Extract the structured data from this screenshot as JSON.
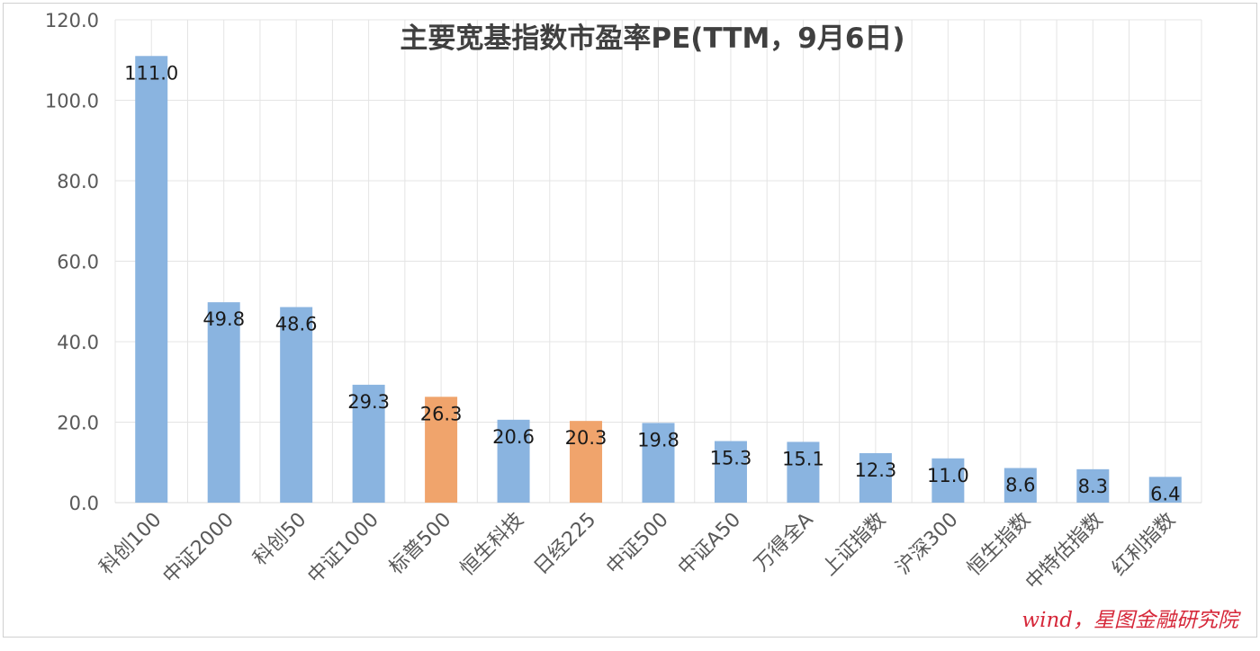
{
  "chart_data": {
    "type": "bar",
    "title": "主要宽基指数市盈率PE(TTM，9月6日)",
    "categories": [
      "科创100",
      "中证2000",
      "科创50",
      "中证1000",
      "标普500",
      "恒生科技",
      "日经225",
      "中证500",
      "中证A50",
      "万得全A",
      "上证指数",
      "沪深300",
      "恒生指数",
      "中特估指数",
      "红利指数"
    ],
    "values": [
      111.0,
      49.8,
      48.6,
      29.3,
      26.3,
      20.6,
      20.3,
      19.8,
      15.3,
      15.1,
      12.3,
      11.0,
      8.6,
      8.3,
      6.4
    ],
    "data_labels": [
      "111.0",
      "49.8",
      "48.6",
      "29.3",
      "26.3",
      "20.6",
      "20.3",
      "19.8",
      "15.3",
      "15.1",
      "12.3",
      "11.0",
      "8.6",
      "8.3",
      "6.4"
    ],
    "bar_colors": [
      "#8ab4e0",
      "#8ab4e0",
      "#8ab4e0",
      "#8ab4e0",
      "#f0a46c",
      "#8ab4e0",
      "#f0a46c",
      "#8ab4e0",
      "#8ab4e0",
      "#8ab4e0",
      "#8ab4e0",
      "#8ab4e0",
      "#8ab4e0",
      "#8ab4e0",
      "#8ab4e0"
    ],
    "ylim": [
      0,
      120
    ],
    "yticks": [
      "0.0",
      "20.0",
      "40.0",
      "60.0",
      "80.0",
      "100.0",
      "120.0"
    ],
    "grid": true,
    "xlabel": "",
    "ylabel": ""
  },
  "source_note": "wind，星图金融研究院",
  "colors": {
    "source_note": "#d6283a",
    "title": "#404040",
    "axis_text": "#595959",
    "grid": "#e4e4e4"
  }
}
